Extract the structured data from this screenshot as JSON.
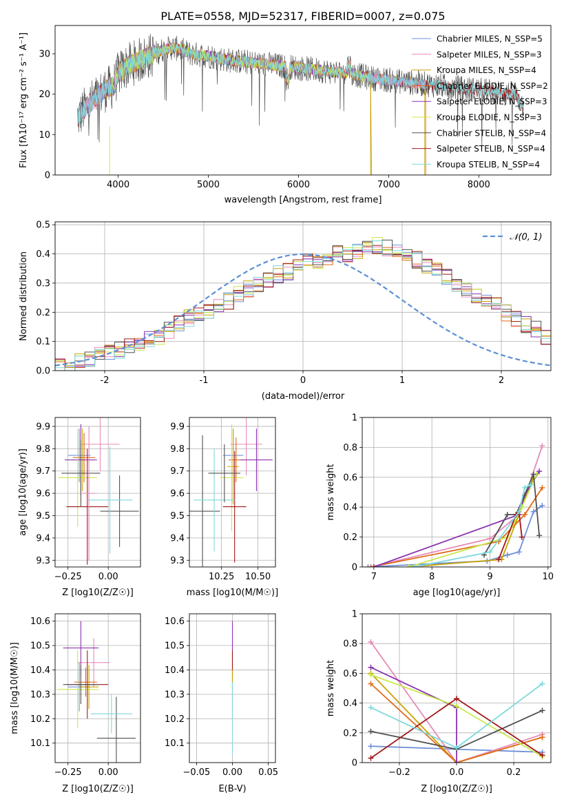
{
  "figure_title": "PLATE=0558, MJD=52317, FIBERID=0007, z=0.075",
  "colors": {
    "Chabrier MILES": "#6e8fd8",
    "Salpeter MILES": "#e68ab8",
    "Kroupa MILES": "#c8a200",
    "Chabrier ELODIE": "#e06a18",
    "Salpeter ELODIE": "#8a32b0",
    "Kroupa ELODIE": "#c8e84a",
    "Chabrier STELIB": "#505050",
    "Salpeter STELIB": "#a01818",
    "Kroupa STELIB": "#7fd8dc",
    "gaussian": "#5b8fd6"
  },
  "chart_data": [
    {
      "id": "spectrum",
      "type": "line",
      "xlabel": "wavelength [Angstrom, rest frame]",
      "ylabel": "Flux [fλ10⁻¹⁷ erg cm⁻² s⁻¹ A⁻¹]",
      "xlim": [
        3300,
        8800
      ],
      "ylim": [
        0,
        37
      ],
      "xticks": [
        4000,
        5000,
        6000,
        7000,
        8000
      ],
      "yticks": [
        0,
        10,
        20,
        30
      ],
      "legend_position": "top-right",
      "legend": [
        "Chabrier MILES, N_SSP=5",
        "Salpeter MILES, N_SSP=3",
        "Kroupa MILES, N_SSP=4",
        "Chabrier ELODIE, N_SSP=2",
        "Salpeter ELODIE, N_SSP=3",
        "Kroupa ELODIE, N_SSP=3",
        "Chabrier STELIB, N_SSP=4",
        "Salpeter STELIB, N_SSP=4",
        "Kroupa STELIB, N_SSP=4"
      ],
      "legend_series": [
        "Chabrier MILES",
        "Salpeter MILES",
        "Kroupa MILES",
        "Chabrier ELODIE",
        "Salpeter ELODIE",
        "Kroupa ELODIE",
        "Chabrier STELIB",
        "Salpeter STELIB",
        "Kroupa STELIB"
      ],
      "continuum": {
        "x": [
          3550,
          3650,
          3750,
          3850,
          3950,
          4000,
          4100,
          4200,
          4300,
          4400,
          4500,
          4600,
          4700,
          4800,
          5000,
          5200,
          5400,
          5600,
          5800,
          6000,
          6200,
          6400,
          6600,
          6800,
          7000,
          7200,
          7400,
          7600,
          7800,
          8000,
          8200,
          8400,
          8500
        ],
        "y": [
          14,
          17,
          19,
          21,
          22,
          25,
          27,
          28,
          29,
          30,
          31,
          31.5,
          31,
          30,
          29.5,
          28.5,
          28,
          27.5,
          27,
          26.5,
          26,
          25.5,
          25,
          24,
          23.5,
          23,
          22.5,
          22,
          21.5,
          21,
          20.5,
          20,
          17
        ]
      }
    },
    {
      "id": "residuals",
      "type": "histogram",
      "xlabel": "(data-model)/error",
      "ylabel": "Normed distribution",
      "xlim": [
        -2.5,
        2.5
      ],
      "ylim": [
        0,
        0.51
      ],
      "xticks": [
        -2,
        -1,
        0,
        1,
        2
      ],
      "yticks": [
        0.0,
        0.1,
        0.2,
        0.3,
        0.4,
        0.5
      ],
      "grid": true,
      "legend_position": "top-right",
      "legend": [
        "𝒩(0, 1)"
      ],
      "bin_width": 0.1,
      "bin_start": -2.5,
      "envelope": [
        0.02,
        0.02,
        0.03,
        0.04,
        0.05,
        0.06,
        0.07,
        0.08,
        0.1,
        0.11,
        0.12,
        0.14,
        0.16,
        0.18,
        0.19,
        0.2,
        0.22,
        0.24,
        0.26,
        0.28,
        0.29,
        0.31,
        0.33,
        0.34,
        0.36,
        0.37,
        0.38,
        0.39,
        0.4,
        0.4,
        0.41,
        0.42,
        0.43,
        0.42,
        0.41,
        0.4,
        0.38,
        0.36,
        0.34,
        0.32,
        0.3,
        0.28,
        0.26,
        0.24,
        0.22,
        0.2,
        0.18,
        0.16,
        0.14,
        0.12
      ],
      "gaussian": {
        "mu": 0,
        "sigma": 1
      }
    },
    {
      "id": "age-vs-Z",
      "type": "errorbar",
      "xlabel": "Z [log10(Z/Z☉)]",
      "ylabel": "age  [log10(age/yr)]",
      "xlim": [
        -0.33,
        0.2
      ],
      "ylim": [
        9.27,
        9.94
      ],
      "xticks": [
        -0.25,
        0.0
      ],
      "xtick_labels": [
        "−0.25",
        "0.00"
      ],
      "yticks": [
        9.3,
        9.4,
        9.5,
        9.6,
        9.7,
        9.8,
        9.9
      ],
      "grid": true,
      "points": [
        {
          "s": "Chabrier MILES",
          "x": -0.18,
          "xe": 0.07,
          "y": 9.77,
          "ye": 0.12
        },
        {
          "s": "Salpeter MILES",
          "x": -0.05,
          "xe": 0.12,
          "y": 9.82,
          "ye": 0.12
        },
        {
          "s": "Kroupa MILES",
          "x": -0.16,
          "xe": 0.06,
          "y": 9.75,
          "ye": 0.14
        },
        {
          "s": "Chabrier ELODIE",
          "x": -0.15,
          "xe": 0.07,
          "y": 9.76,
          "ye": 0.11
        },
        {
          "s": "Salpeter ELODIE",
          "x": -0.17,
          "xe": 0.1,
          "y": 9.75,
          "ye": 0.16
        },
        {
          "s": "Kroupa ELODIE",
          "x": -0.19,
          "xe": 0.12,
          "y": 9.67,
          "ye": 0.22
        },
        {
          "s": "Chabrier STELIB",
          "x": 0.07,
          "xe": 0.12,
          "y": 9.52,
          "ye": 0.16
        },
        {
          "s": "Salpeter STELIB",
          "x": -0.13,
          "xe": 0.13,
          "y": 9.54,
          "ye": 0.26
        },
        {
          "s": "Kroupa STELIB",
          "x": 0.01,
          "xe": 0.14,
          "y": 9.57,
          "ye": 0.24
        },
        {
          "s": "Chabrier STELIB",
          "x": -0.17,
          "xe": 0.12,
          "y": 9.69,
          "ye": 0.15
        },
        {
          "s": "Salpeter MILES",
          "x": -0.12,
          "xe": 0.05,
          "y": 9.6,
          "ye": 0.3
        }
      ]
    },
    {
      "id": "age-vs-mass",
      "type": "errorbar",
      "xlabel": "mass [log10(M/M☉)]",
      "ylabel": "",
      "xlim": [
        10.03,
        10.62
      ],
      "ylim": [
        9.27,
        9.94
      ],
      "xticks": [
        10.25,
        10.5
      ],
      "xtick_labels": [
        "10.25",
        "10.50"
      ],
      "yticks": [
        9.3,
        9.4,
        9.5,
        9.6,
        9.7,
        9.8,
        9.9
      ],
      "grid": true,
      "points": [
        {
          "s": "Chabrier MILES",
          "x": 10.33,
          "xe": 0.07,
          "y": 9.77,
          "ye": 0.12
        },
        {
          "s": "Salpeter MILES",
          "x": 10.42,
          "xe": 0.11,
          "y": 9.82,
          "ye": 0.14
        },
        {
          "s": "Kroupa MILES",
          "x": 10.33,
          "xe": 0.04,
          "y": 9.72,
          "ye": 0.17
        },
        {
          "s": "Chabrier ELODIE",
          "x": 10.35,
          "xe": 0.05,
          "y": 9.75,
          "ye": 0.1
        },
        {
          "s": "Salpeter ELODIE",
          "x": 10.49,
          "xe": 0.11,
          "y": 9.75,
          "ye": 0.14
        },
        {
          "s": "Kroupa ELODIE",
          "x": 10.32,
          "xe": 0.08,
          "y": 9.67,
          "ye": 0.24
        },
        {
          "s": "Chabrier STELIB",
          "x": 10.12,
          "xe": 0.12,
          "y": 9.52,
          "ye": 0.34
        },
        {
          "s": "Salpeter STELIB",
          "x": 10.34,
          "xe": 0.08,
          "y": 9.54,
          "ye": 0.25
        },
        {
          "s": "Kroupa STELIB",
          "x": 10.2,
          "xe": 0.14,
          "y": 9.57,
          "ye": 0.23
        },
        {
          "s": "Chabrier STELIB",
          "x": 10.27,
          "xe": 0.11,
          "y": 9.69,
          "ye": 0.13
        }
      ]
    },
    {
      "id": "weight-vs-age",
      "type": "line",
      "xlabel": "age  [log10(age/yr)]",
      "ylabel": "mass weight",
      "xlim": [
        6.8,
        10.05
      ],
      "ylim": [
        0,
        1.0
      ],
      "xticks": [
        7,
        8,
        9,
        10
      ],
      "yticks": [
        0.0,
        0.2,
        0.4,
        0.6,
        0.8,
        1.0
      ],
      "grid": true,
      "series": [
        {
          "s": "Chabrier MILES",
          "x": [
            6.9,
            8.95,
            9.3,
            9.5,
            9.75,
            9.9
          ],
          "y": [
            0.0,
            0.04,
            0.08,
            0.1,
            0.37,
            0.41
          ]
        },
        {
          "s": "Salpeter MILES",
          "x": [
            6.95,
            9.0,
            9.5,
            9.9
          ],
          "y": [
            0.0,
            0.19,
            0.35,
            0.81
          ]
        },
        {
          "s": "Kroupa MILES",
          "x": [
            7.6,
            9.2,
            9.45,
            9.75
          ],
          "y": [
            0.0,
            0.05,
            0.3,
            0.6
          ]
        },
        {
          "s": "Chabrier ELODIE",
          "x": [
            6.95,
            9.15,
            9.6,
            9.9
          ],
          "y": [
            0.0,
            0.17,
            0.35,
            0.53
          ]
        },
        {
          "s": "Salpeter ELODIE",
          "x": [
            7.0,
            9.5,
            9.6,
            9.85
          ],
          "y": [
            0.0,
            0.35,
            0.48,
            0.64
          ]
        },
        {
          "s": "Kroupa ELODIE",
          "x": [
            7.6,
            9.3,
            9.55,
            9.8
          ],
          "y": [
            0.0,
            0.2,
            0.4,
            0.62
          ]
        },
        {
          "s": "Chabrier STELIB",
          "x": [
            8.9,
            9.3,
            9.45,
            9.75,
            9.85
          ],
          "y": [
            0.08,
            0.35,
            0.35,
            0.62,
            0.21
          ]
        },
        {
          "s": "Salpeter STELIB",
          "x": [
            9.15,
            9.45,
            9.5,
            9.55
          ],
          "y": [
            0.05,
            0.35,
            0.37,
            0.2
          ]
        },
        {
          "s": "Kroupa STELIB",
          "x": [
            7.7,
            9.0,
            9.5,
            9.6,
            9.7
          ],
          "y": [
            0.0,
            0.1,
            0.37,
            0.53,
            0.55
          ]
        }
      ]
    },
    {
      "id": "mass-vs-Z",
      "type": "errorbar",
      "xlabel": "Z [log10(Z/Z☉)]",
      "ylabel": "mass [log10(M/M☉)]",
      "xlim": [
        -0.33,
        0.2
      ],
      "ylim": [
        10.02,
        10.63
      ],
      "xticks": [
        -0.25,
        0.0
      ],
      "xtick_labels": [
        "−0.25",
        "0.00"
      ],
      "yticks": [
        10.1,
        10.2,
        10.3,
        10.4,
        10.5,
        10.6
      ],
      "grid": true,
      "points": [
        {
          "s": "Chabrier MILES",
          "x": -0.18,
          "xe": 0.07,
          "y": 10.33,
          "ye": 0.1
        },
        {
          "s": "Salpeter MILES",
          "x": -0.09,
          "xe": 0.1,
          "y": 10.43,
          "ye": 0.1
        },
        {
          "s": "Kroupa MILES",
          "x": -0.12,
          "xe": 0.06,
          "y": 10.33,
          "ye": 0.09
        },
        {
          "s": "Chabrier ELODIE",
          "x": -0.14,
          "xe": 0.07,
          "y": 10.35,
          "ye": 0.06
        },
        {
          "s": "Salpeter ELODIE",
          "x": -0.17,
          "xe": 0.11,
          "y": 10.49,
          "ye": 0.11
        },
        {
          "s": "Kroupa ELODIE",
          "x": -0.19,
          "xe": 0.13,
          "y": 10.32,
          "ye": 0.16
        },
        {
          "s": "Chabrier STELIB",
          "x": 0.05,
          "xe": 0.12,
          "y": 10.12,
          "ye": 0.17
        },
        {
          "s": "Salpeter STELIB",
          "x": -0.13,
          "xe": 0.13,
          "y": 10.34,
          "ye": 0.14
        },
        {
          "s": "Kroupa STELIB",
          "x": 0.02,
          "xe": 0.13,
          "y": 10.22,
          "ye": 0.08
        },
        {
          "s": "Chabrier STELIB",
          "x": -0.17,
          "xe": 0.11,
          "y": 10.34,
          "ye": 0.08
        }
      ]
    },
    {
      "id": "mass-vs-EBV",
      "type": "errorbar",
      "xlabel": "E(B-V)",
      "ylabel": "",
      "xlim": [
        -0.06,
        0.06
      ],
      "ylim": [
        10.02,
        10.63
      ],
      "xticks": [
        -0.05,
        0.0,
        0.05
      ],
      "xtick_labels": [
        "−0.05",
        "0.00",
        "0.05"
      ],
      "yticks": [
        10.1,
        10.2,
        10.3,
        10.4,
        10.5,
        10.6
      ],
      "grid": true,
      "points": [
        {
          "s": "Salpeter ELODIE",
          "x": 0.0,
          "xe": 0,
          "y": 10.49,
          "ye": 0.11
        },
        {
          "s": "Salpeter STELIB",
          "x": 0.0,
          "xe": 0,
          "y": 10.4,
          "ye": 0.08
        },
        {
          "s": "Kroupa MILES",
          "x": 0.0,
          "xe": 0,
          "y": 10.3,
          "ye": 0.1
        },
        {
          "s": "Kroupa STELIB",
          "x": 0.0,
          "xe": 0,
          "y": 10.2,
          "ye": 0.15
        }
      ]
    },
    {
      "id": "weight-vs-Z",
      "type": "line",
      "xlabel": "Z [log10(Z/Z☉)]",
      "ylabel": "mass weight",
      "xlim": [
        -0.33,
        0.33
      ],
      "ylim": [
        0,
        1.0
      ],
      "xticks": [
        -0.2,
        0.0,
        0.2
      ],
      "xtick_labels": [
        "−0.2",
        "0.0",
        "0.2"
      ],
      "yticks": [
        0.0,
        0.2,
        0.4,
        0.6,
        0.8,
        1.0
      ],
      "grid": true,
      "series": [
        {
          "s": "Chabrier MILES",
          "x": [
            -0.3,
            0.0,
            0.3
          ],
          "y": [
            0.11,
            0.09,
            0.07
          ]
        },
        {
          "s": "Salpeter MILES",
          "x": [
            -0.3,
            0.0,
            0.3
          ],
          "y": [
            0.81,
            0.0,
            0.19
          ]
        },
        {
          "s": "Kroupa MILES",
          "x": [
            -0.3,
            0.0,
            0.3
          ],
          "y": [
            0.6,
            0.0,
            0.17
          ]
        },
        {
          "s": "Chabrier ELODIE",
          "x": [
            -0.3,
            0.0,
            0.3
          ],
          "y": [
            0.53,
            0.0,
            0.17
          ]
        },
        {
          "s": "Salpeter ELODIE",
          "x": [
            -0.3,
            0.0,
            0.0
          ],
          "y": [
            0.64,
            0.37,
            0.0
          ]
        },
        {
          "s": "Kroupa ELODIE",
          "x": [
            -0.3,
            0.0,
            0.3
          ],
          "y": [
            0.59,
            0.38,
            0.04
          ]
        },
        {
          "s": "Chabrier STELIB",
          "x": [
            -0.3,
            0.0,
            0.3
          ],
          "y": [
            0.21,
            0.09,
            0.35
          ]
        },
        {
          "s": "Salpeter STELIB",
          "x": [
            -0.3,
            0.0,
            0.3
          ],
          "y": [
            0.03,
            0.43,
            0.05
          ]
        },
        {
          "s": "Kroupa STELIB",
          "x": [
            -0.3,
            0.0,
            0.3
          ],
          "y": [
            0.37,
            0.1,
            0.53
          ]
        }
      ]
    }
  ]
}
